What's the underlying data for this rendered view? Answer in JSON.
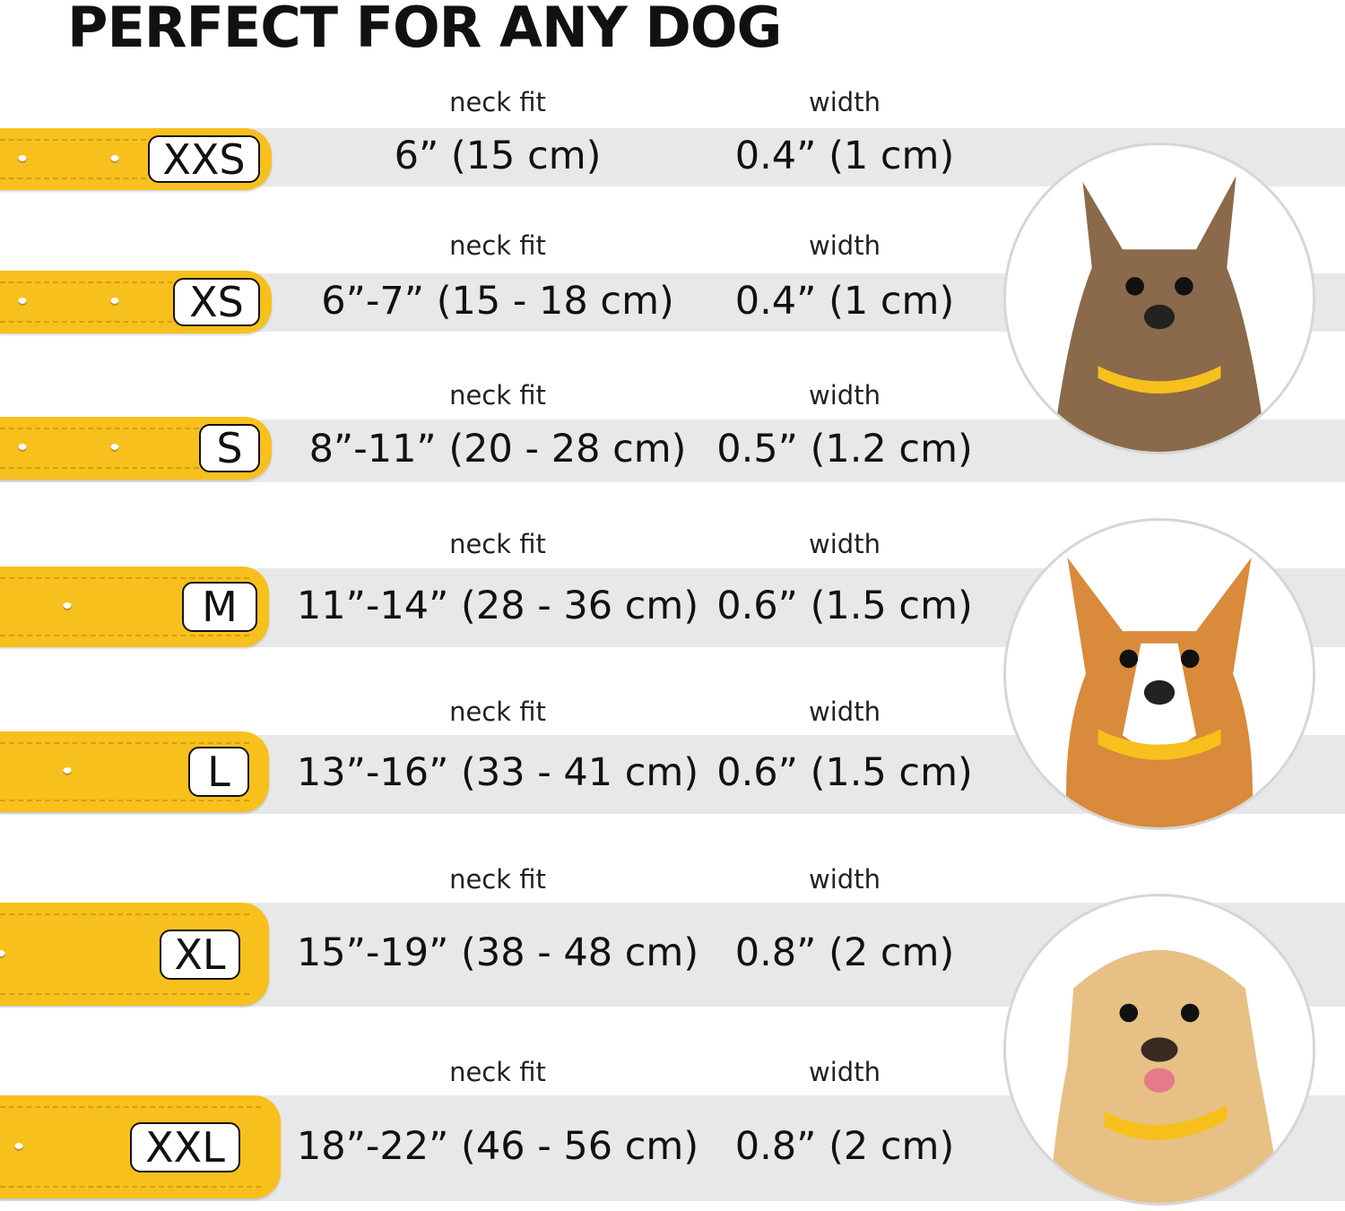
{
  "title": "PERFECT FOR ANY DOG",
  "colors": {
    "collar": "#f7c01c",
    "band": "#e8e8e8"
  },
  "rows": [
    {
      "size": "XXS",
      "neck_label": "neck fit",
      "neck": "6” (15 cm)",
      "width_label": "width",
      "width": "0.4” (1 cm)"
    },
    {
      "size": "XS",
      "neck_label": "neck fit",
      "neck": "6”-7” (15 - 18 cm)",
      "width_label": "width",
      "width": "0.4” (1 cm)"
    },
    {
      "size": "S",
      "neck_label": "neck fit",
      "neck": "8”-11” (20 - 28 cm)",
      "width_label": "width",
      "width": "0.5” (1.2 cm)"
    },
    {
      "size": "M",
      "neck_label": "neck fit",
      "neck": "11”-14” (28 - 36 cm)",
      "width_label": "width",
      "width": "0.6” (1.5 cm)"
    },
    {
      "size": "L",
      "neck_label": "neck fit",
      "neck": "13”-16” (33 - 41 cm)",
      "width_label": "width",
      "width": "0.6” (1.5 cm)"
    },
    {
      "size": "XL",
      "neck_label": "neck fit",
      "neck": "15”-19” (38 - 48 cm)",
      "width_label": "width",
      "width": "0.8” (2 cm)"
    },
    {
      "size": "XXL",
      "neck_label": "neck fit",
      "neck": "18”-22” (46 - 56 cm)",
      "width_label": "width",
      "width": "0.8” (2 cm)"
    }
  ],
  "images": [
    "small-terrier-photo",
    "corgi-photo",
    "labrador-photo"
  ]
}
